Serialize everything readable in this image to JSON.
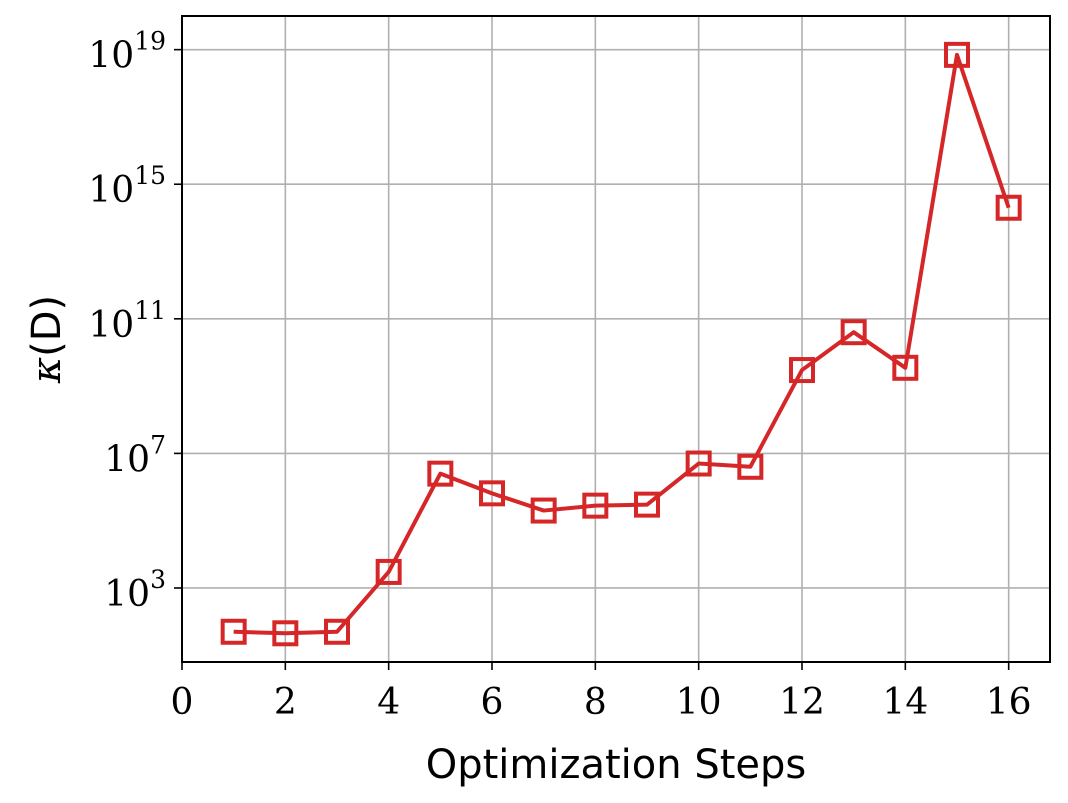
{
  "chart_data": {
    "type": "line",
    "title": "",
    "xlabel": "Optimization Steps",
    "ylabel": {
      "symbol": "κ",
      "arg": "(D)"
    },
    "xlim": [
      0,
      16.8
    ],
    "ylim_log10": [
      0.8,
      20.0
    ],
    "yscale": "log",
    "grid": true,
    "legend": "none",
    "x_ticks": [
      0,
      2,
      4,
      6,
      8,
      10,
      12,
      14,
      16
    ],
    "y_ticks": [
      {
        "base": "10",
        "exp": "3",
        "log10": 3
      },
      {
        "base": "10",
        "exp": "7",
        "log10": 7
      },
      {
        "base": "10",
        "exp": "11",
        "log10": 11
      },
      {
        "base": "10",
        "exp": "15",
        "log10": 15
      },
      {
        "base": "10",
        "exp": "19",
        "log10": 19
      }
    ],
    "series": [
      {
        "color": "#d62728",
        "marker": "square",
        "x": [
          1,
          2,
          3,
          4,
          5,
          6,
          7,
          8,
          9,
          10,
          11,
          12,
          13,
          14,
          15,
          16
        ],
        "y": [
          50,
          45,
          50,
          3000,
          2500000,
          650000,
          200000,
          280000,
          300000,
          5000000,
          4000000,
          3000000000,
          40000000000,
          3500000000,
          7000000000000000000,
          200000000000000
        ]
      }
    ]
  }
}
